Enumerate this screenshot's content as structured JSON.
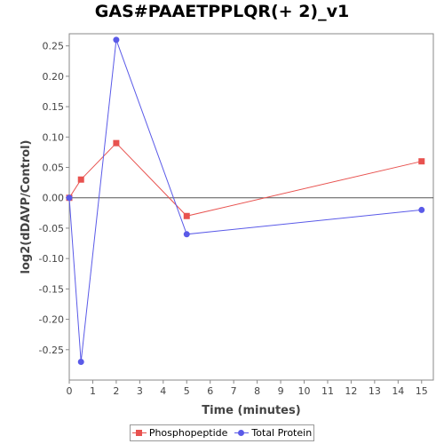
{
  "chart_data": {
    "type": "line",
    "title": "GAS#PAAETPPLQR(+ 2)_v1",
    "xlabel": "Time (minutes)",
    "ylabel": "log2(dDAVP/Control)",
    "xlim": [
      0,
      15.5
    ],
    "ylim": [
      -0.3,
      0.27
    ],
    "xticks": [
      0,
      1,
      2,
      3,
      4,
      5,
      6,
      7,
      8,
      9,
      10,
      11,
      12,
      13,
      14,
      15
    ],
    "yticks": [
      -0.25,
      -0.2,
      -0.15,
      -0.1,
      -0.05,
      0.0,
      0.05,
      0.1,
      0.15,
      0.2,
      0.25
    ],
    "ytick_labels": [
      "-0.25",
      "-0.20",
      "-0.15",
      "-0.10",
      "-0.05",
      "0.00",
      "0.05",
      "0.10",
      "0.15",
      "0.20",
      "0.25"
    ],
    "zero_line": true,
    "grid": false,
    "legend_position": "bottom-center",
    "series": [
      {
        "name": "Phosphopeptide",
        "color": "#e8524f",
        "marker": "square",
        "x": [
          0,
          0.5,
          2,
          5,
          15
        ],
        "y": [
          0.0,
          0.03,
          0.09,
          -0.03,
          0.06
        ]
      },
      {
        "name": "Total Protein",
        "color": "#5a5ae8",
        "marker": "circle",
        "x": [
          0,
          0.5,
          2,
          5,
          15
        ],
        "y": [
          0.0,
          -0.27,
          0.26,
          -0.06,
          -0.02
        ]
      }
    ]
  }
}
